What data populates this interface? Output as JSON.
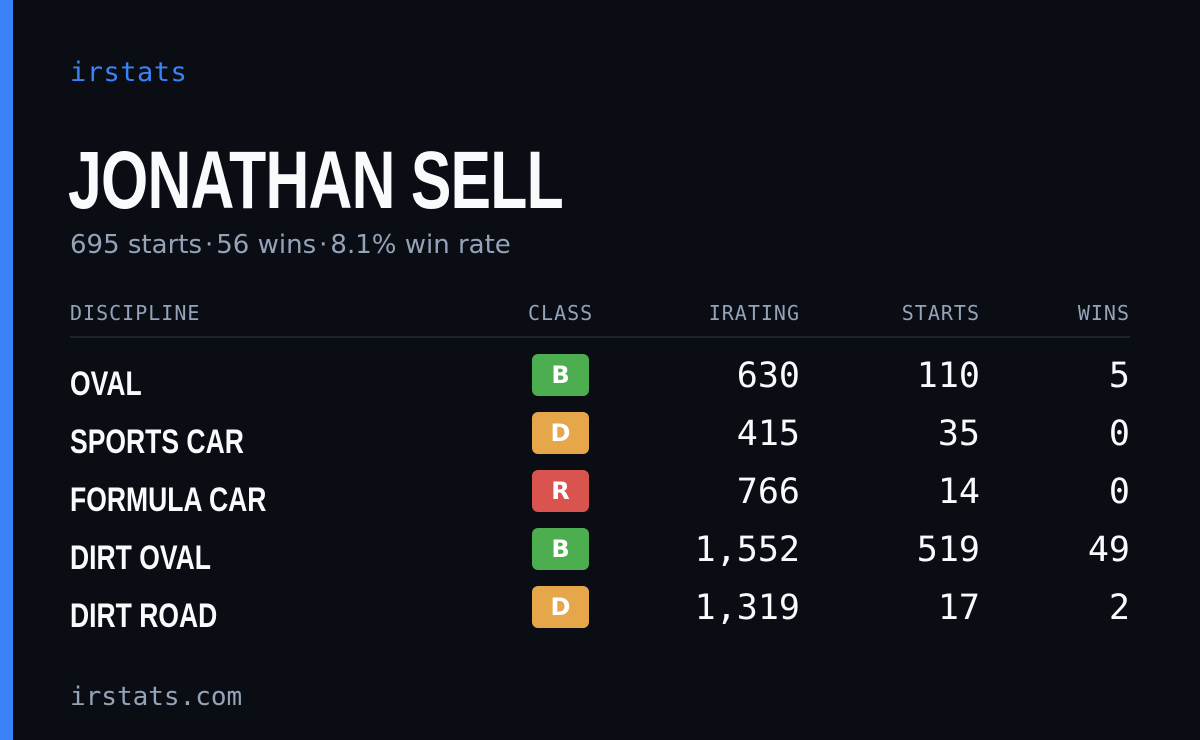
{
  "brand": "irstats",
  "driver": {
    "name": "JONATHAN SELL",
    "summary_parts": [
      "695 starts",
      "56 wins",
      "8.1% win rate"
    ],
    "separator": "·"
  },
  "table": {
    "headers": {
      "discipline": "DISCIPLINE",
      "class": "CLASS",
      "irating": "IRATING",
      "starts": "STARTS",
      "wins": "WINS"
    },
    "rows": [
      {
        "discipline": "OVAL",
        "class": "B",
        "class_color": "#4cae4f",
        "irating": "630",
        "starts": "110",
        "wins": "5"
      },
      {
        "discipline": "SPORTS CAR",
        "class": "D",
        "class_color": "#e6a64a",
        "irating": "415",
        "starts": "35",
        "wins": "0"
      },
      {
        "discipline": "FORMULA CAR",
        "class": "R",
        "class_color": "#d9534f",
        "irating": "766",
        "starts": "14",
        "wins": "0"
      },
      {
        "discipline": "DIRT OVAL",
        "class": "B",
        "class_color": "#4cae4f",
        "irating": "1,552",
        "starts": "519",
        "wins": "49"
      },
      {
        "discipline": "DIRT ROAD",
        "class": "D",
        "class_color": "#e6a64a",
        "irating": "1,319",
        "starts": "17",
        "wins": "2"
      }
    ]
  },
  "footer": "irstats.com",
  "colors": {
    "accent": "#3b82f6",
    "background": "#0a0d14",
    "muted_text": "#94a3b8",
    "primary_text": "#f8fafc"
  }
}
